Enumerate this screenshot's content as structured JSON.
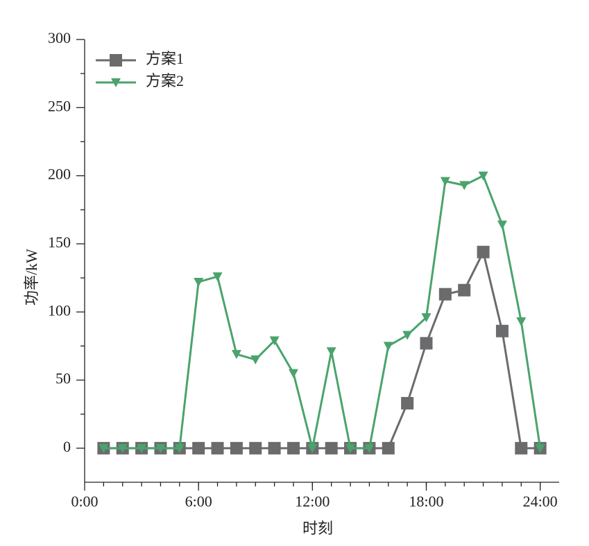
{
  "chart_data": {
    "type": "line",
    "x_label": "时刻",
    "y_label": "功率/kW",
    "x": [
      1,
      2,
      3,
      4,
      5,
      6,
      7,
      8,
      9,
      10,
      11,
      12,
      13,
      14,
      15,
      16,
      17,
      18,
      19,
      20,
      21,
      22,
      23,
      24
    ],
    "series": [
      {
        "name": "方案1",
        "color": "#6b6b6d",
        "marker": "square",
        "values": [
          0,
          0,
          0,
          0,
          0,
          0,
          0,
          0,
          0,
          0,
          0,
          0,
          0,
          0,
          0,
          0,
          33,
          77,
          113,
          116,
          144,
          86,
          0,
          0
        ]
      },
      {
        "name": "方案2",
        "color": "#4aa36c",
        "marker": "triangle-down",
        "values": [
          0,
          0,
          0,
          0,
          0,
          122,
          126,
          69,
          65,
          79,
          55,
          0,
          71,
          0,
          0,
          75,
          83,
          96,
          196,
          193,
          200,
          164,
          93,
          0
        ]
      }
    ],
    "xlim": [
      0,
      25
    ],
    "xticks": [
      {
        "value": 0,
        "label": "0:00"
      },
      {
        "value": 6,
        "label": "6:00"
      },
      {
        "value": 12,
        "label": "12:00"
      },
      {
        "value": 18,
        "label": "18:00"
      },
      {
        "value": 24,
        "label": "24:00"
      }
    ],
    "ylim": [
      -25,
      300
    ],
    "yticks": [
      0,
      50,
      100,
      150,
      200,
      250,
      300
    ],
    "legend": "upper-left",
    "grid": false
  }
}
